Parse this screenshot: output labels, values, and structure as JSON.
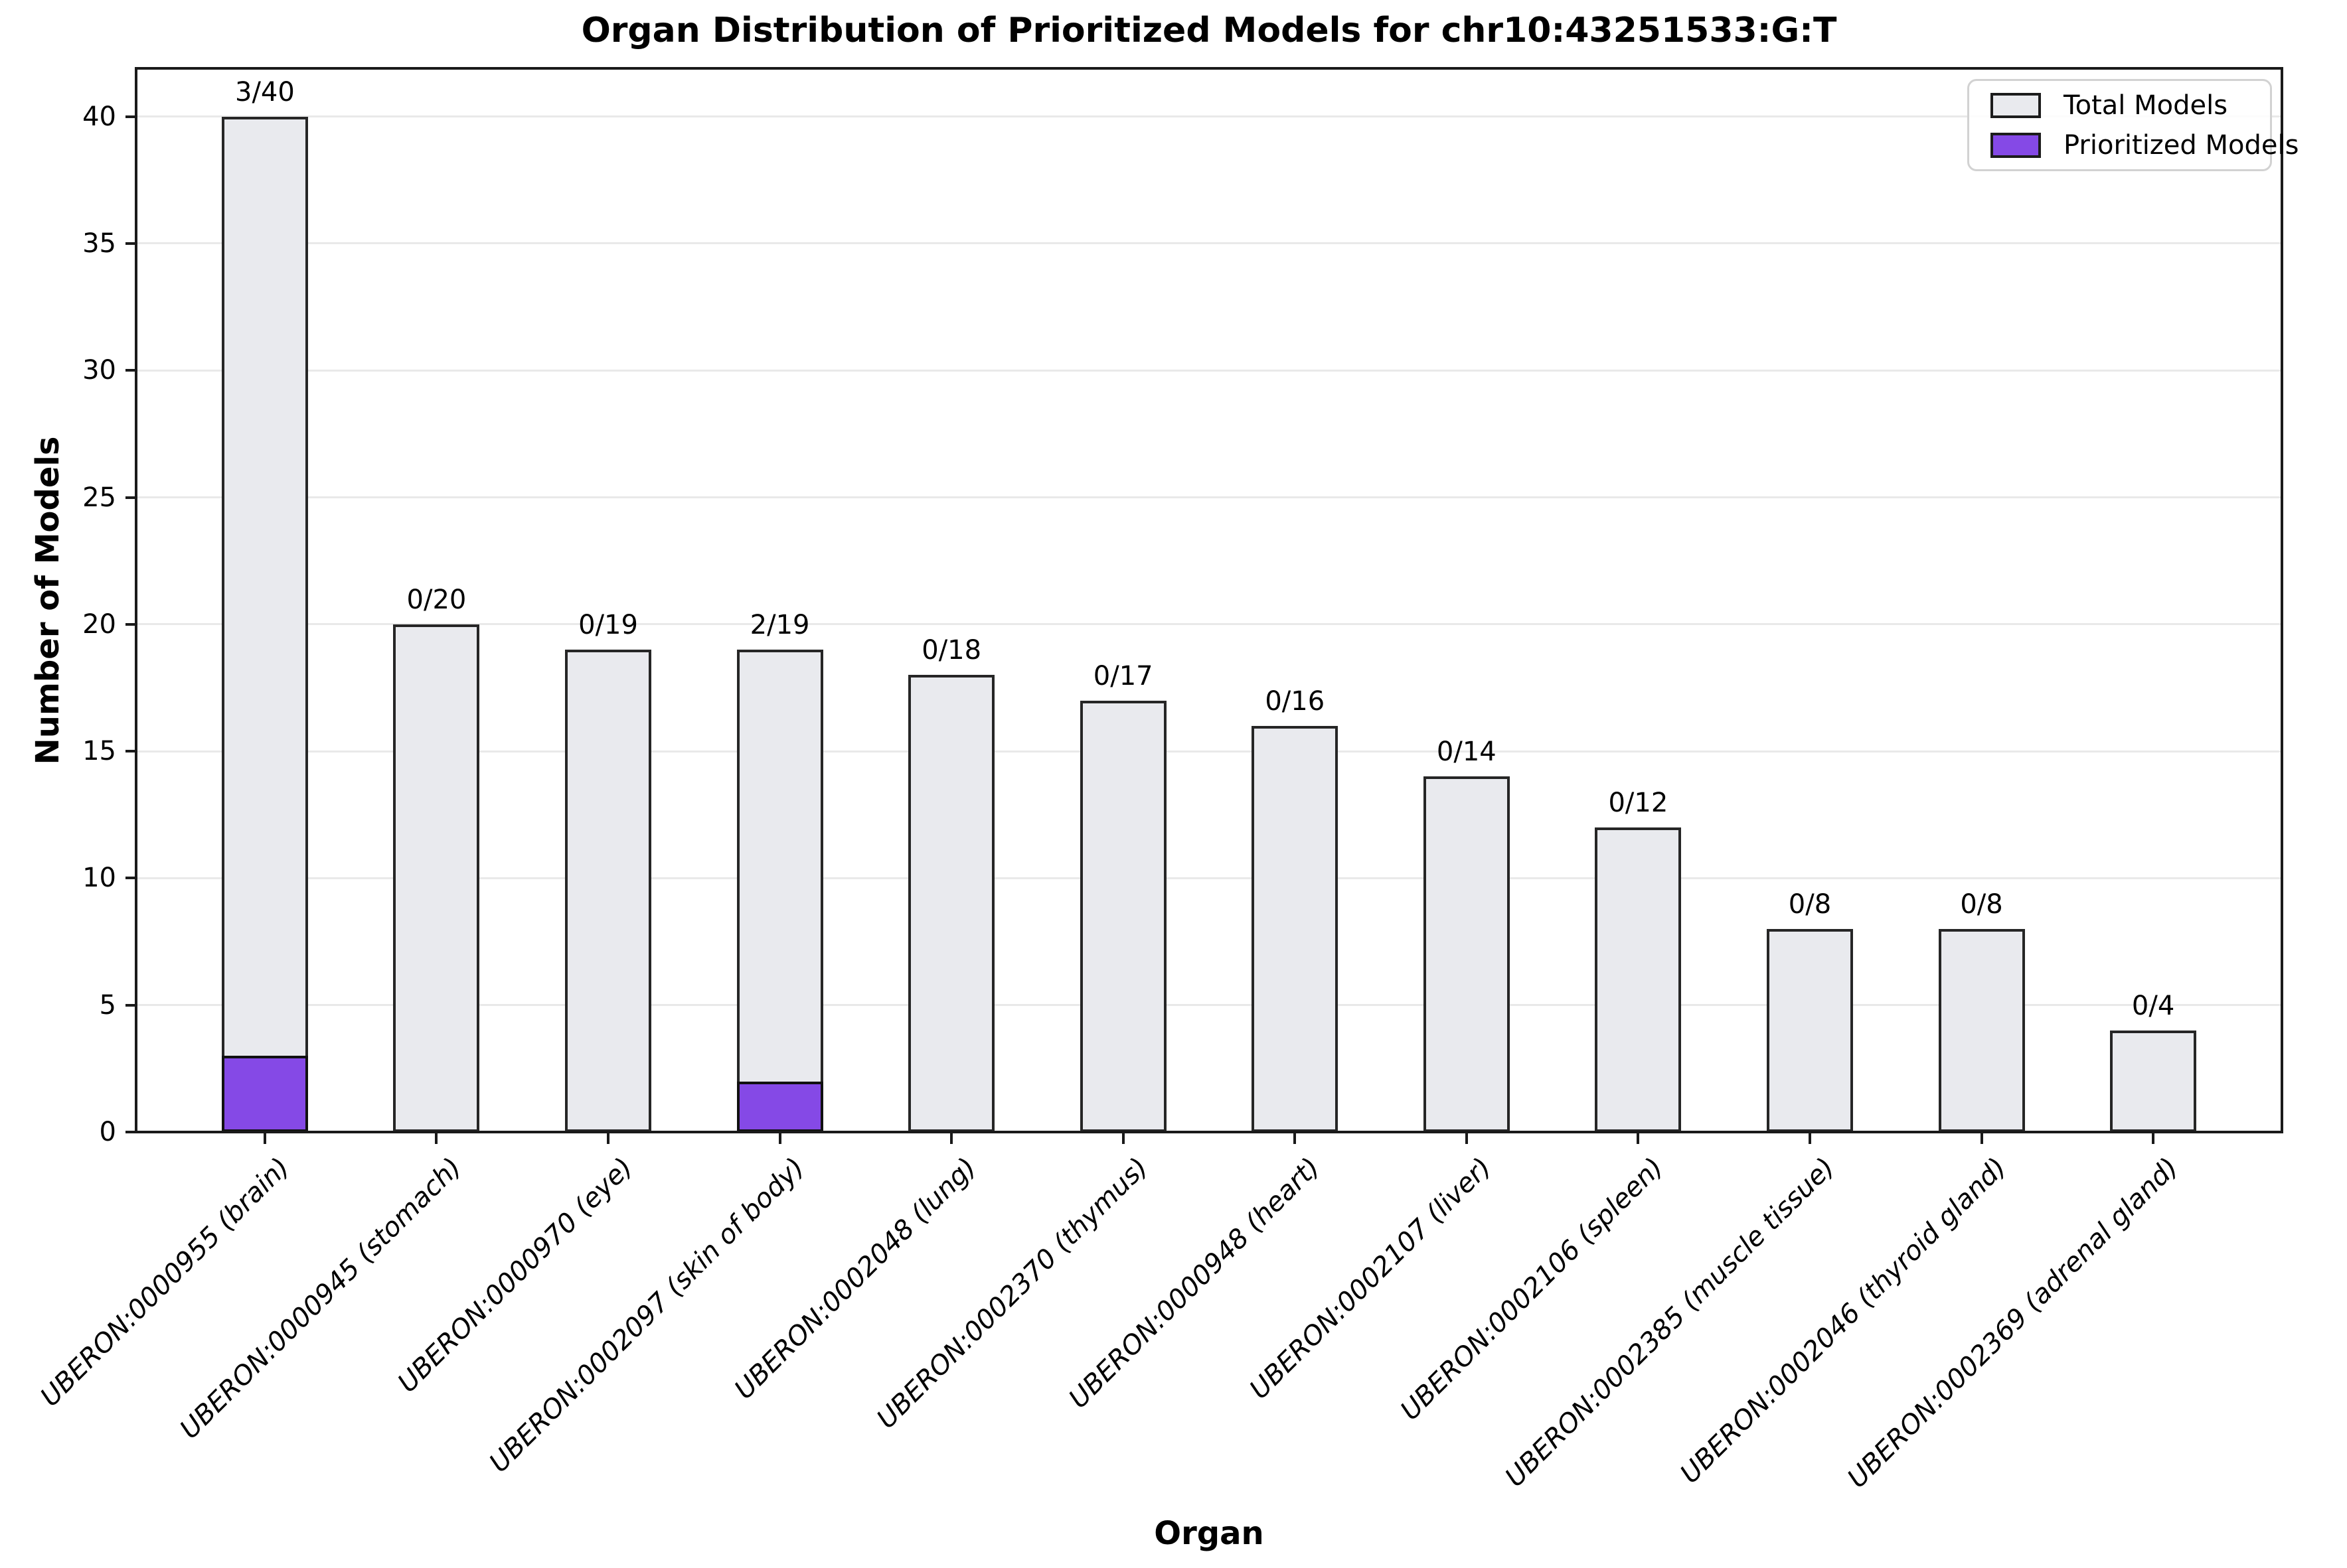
{
  "chart_data": {
    "type": "bar",
    "title": "Organ Distribution of Prioritized Models for chr10:43251533:G:T",
    "xlabel": "Organ",
    "ylabel": "Number of Models",
    "ylim": [
      0,
      42
    ],
    "yticks": [
      0,
      5,
      10,
      15,
      20,
      25,
      30,
      35,
      40
    ],
    "grid": "horizontal",
    "legend_position": "upper right",
    "categories": [
      "UBERON:0000955 (brain)",
      "UBERON:0000945 (stomach)",
      "UBERON:0000970 (eye)",
      "UBERON:0002097 (skin of body)",
      "UBERON:0002048 (lung)",
      "UBERON:0002370 (thymus)",
      "UBERON:0000948 (heart)",
      "UBERON:0002107 (liver)",
      "UBERON:0002106 (spleen)",
      "UBERON:0002385 (muscle tissue)",
      "UBERON:0002046 (thyroid gland)",
      "UBERON:0002369 (adrenal gland)"
    ],
    "series": [
      {
        "name": "Total Models",
        "values": [
          40,
          20,
          19,
          19,
          18,
          17,
          16,
          14,
          12,
          8,
          8,
          4
        ]
      },
      {
        "name": "Prioritized Models",
        "values": [
          3,
          0,
          0,
          2,
          0,
          0,
          0,
          0,
          0,
          0,
          0,
          0
        ]
      }
    ],
    "bar_labels": [
      "3/40",
      "0/20",
      "0/19",
      "2/19",
      "0/18",
      "0/17",
      "0/16",
      "0/14",
      "0/12",
      "0/8",
      "0/8",
      "0/4"
    ]
  },
  "legend": {
    "entries": [
      {
        "label": "Total Models",
        "color": "#e9eaee"
      },
      {
        "label": "Prioritized Models",
        "color": "#8549e6"
      }
    ]
  },
  "colors": {
    "total_fill": "#e9eaee",
    "prioritized_fill": "#8549e6",
    "bar_edge": "#262626",
    "grid": "#e9e9e9",
    "axis": "#1a1a1a",
    "legend_border": "#d2d2d2"
  }
}
